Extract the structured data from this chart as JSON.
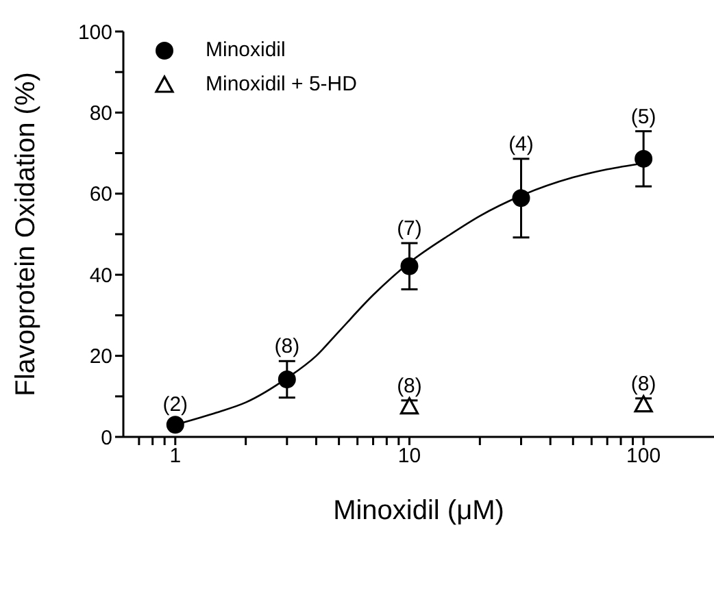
{
  "chart_data": {
    "type": "scatter",
    "xlabel": "Minoxidil (μM)",
    "ylabel": "Flavoprotein Oxidation (%)",
    "log": "x",
    "xlim": [
      0.6,
      200
    ],
    "ylim": [
      0,
      100
    ],
    "xticks": [
      {
        "value": 0.7,
        "label": null
      },
      {
        "value": 0.8,
        "label": null
      },
      {
        "value": 0.9,
        "label": null
      },
      1,
      {
        "value": 2,
        "label": null
      },
      {
        "value": 3,
        "label": null
      },
      {
        "value": 4,
        "label": null
      },
      {
        "value": 5,
        "label": null
      },
      {
        "value": 6,
        "label": null
      },
      {
        "value": 7,
        "label": null
      },
      {
        "value": 8,
        "label": null
      },
      {
        "value": 9,
        "label": null
      },
      10,
      {
        "value": 20,
        "label": null
      },
      {
        "value": 30,
        "label": null
      },
      {
        "value": 40,
        "label": null
      },
      {
        "value": 50,
        "label": null
      },
      {
        "value": 60,
        "label": null
      },
      {
        "value": 70,
        "label": null
      },
      {
        "value": 80,
        "label": null
      },
      {
        "value": 90,
        "label": null
      },
      100
    ],
    "yticks": [
      0,
      {
        "value": 10,
        "label": null
      },
      20,
      {
        "value": 30,
        "label": null
      },
      40,
      {
        "value": 50,
        "label": null
      },
      60,
      {
        "value": 70,
        "label": null
      },
      80,
      {
        "value": 90,
        "label": null
      },
      100
    ],
    "grid": false,
    "legend": "top left",
    "series": [
      {
        "name": "Minoxidil",
        "marker": "circle",
        "color": "#000000",
        "x": [
          1,
          3,
          10,
          30,
          100
        ],
        "values": [
          3,
          14.2,
          42.1,
          58.9,
          68.6
        ],
        "errors": [
          null,
          4.5,
          5.7,
          9.7,
          6.8
        ]
      },
      {
        "name": "Minoxidil + 5-HD",
        "marker": "triangle",
        "color": "#000000",
        "x": [
          10,
          100
        ],
        "values": [
          7.5,
          8
        ],
        "errors": [
          1.5,
          1.5
        ]
      },
      {
        "type": "line",
        "marker": "none",
        "line_style": "solid",
        "color": "#000000",
        "x": [
          1,
          1.5,
          2,
          3,
          4,
          5,
          7,
          10,
          15,
          20,
          30,
          50,
          70,
          100
        ],
        "values": [
          3,
          6,
          8.5,
          14.5,
          20,
          26,
          35,
          43,
          50,
          54.5,
          59.5,
          64,
          66,
          67.5
        ]
      }
    ],
    "annotations": [
      {
        "text": "(2)",
        "x": 1,
        "y": 3
      },
      {
        "text": "(8)",
        "x": 3,
        "y": 14.2
      },
      {
        "text": "(7)",
        "x": 10,
        "y": 42.1
      },
      {
        "text": "(4)",
        "x": 30,
        "y": 58.9
      },
      {
        "text": "(5)",
        "x": 100,
        "y": 68.6
      },
      {
        "text": "(8)",
        "x": 10,
        "y": 7.5
      },
      {
        "text": "(8)",
        "x": 100,
        "y": 8
      }
    ]
  }
}
